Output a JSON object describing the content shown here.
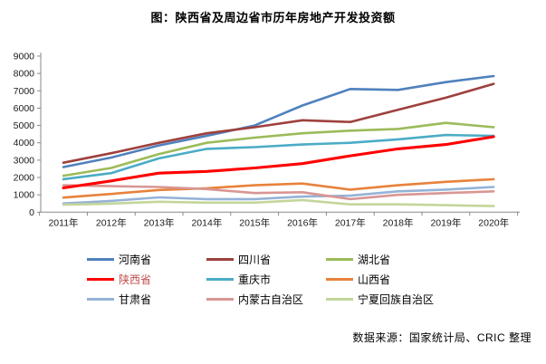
{
  "title": "图：陕西省及周边省市历年房地产开发投资额",
  "source": "数据来源：国家统计局、CRIC 整理",
  "axis": {
    "unit_px_note": "y axis 0-9000, ticks every 1000",
    "tick_color": "#898989",
    "label_color": "#1a1a1a"
  },
  "chart_data": {
    "type": "line",
    "title": "图：陕西省及周边省市历年房地产开发投资额",
    "x": [
      "2011年",
      "2012年",
      "2013年",
      "2014年",
      "2015年",
      "2016年",
      "2017年",
      "2018年",
      "2019年",
      "2020年"
    ],
    "ylim": [
      0,
      9000
    ],
    "ytick_step": 1000,
    "grid": false,
    "legend_position": "bottom",
    "highlight_series": "陕西省",
    "highlight_label_color": "#C0504D",
    "series": [
      {
        "name": "河南省",
        "color": "#4F81BD",
        "values": [
          2600,
          3150,
          3850,
          4400,
          5000,
          6150,
          7100,
          7050,
          7500,
          7850
        ]
      },
      {
        "name": "四川省",
        "color": "#9E413E",
        "values": [
          2850,
          3400,
          4000,
          4550,
          4900,
          5300,
          5200,
          5900,
          6600,
          7400
        ]
      },
      {
        "name": "湖北省",
        "color": "#9BBB59",
        "values": [
          2100,
          2550,
          3350,
          4000,
          4300,
          4550,
          4700,
          4800,
          5150,
          4900
        ]
      },
      {
        "name": "陕西省",
        "color": "#FF0000",
        "values": [
          1400,
          1800,
          2250,
          2350,
          2550,
          2800,
          3250,
          3650,
          3900,
          4350
        ]
      },
      {
        "name": "重庆市",
        "color": "#4BACC6",
        "values": [
          1900,
          2250,
          3100,
          3650,
          3750,
          3900,
          4000,
          4200,
          4450,
          4400
        ]
      },
      {
        "name": "山西省",
        "color": "#E8823C",
        "values": [
          840,
          1050,
          1280,
          1380,
          1550,
          1650,
          1300,
          1550,
          1750,
          1900
        ]
      },
      {
        "name": "甘肃省",
        "color": "#95B3D7",
        "values": [
          500,
          650,
          850,
          750,
          750,
          900,
          950,
          1200,
          1300,
          1450
        ]
      },
      {
        "name": "内蒙古自治区",
        "color": "#D99694",
        "values": [
          1550,
          1500,
          1450,
          1330,
          1100,
          1150,
          750,
          1000,
          1100,
          1200
        ]
      },
      {
        "name": "宁夏回族自治区",
        "color": "#C3D69B",
        "values": [
          430,
          490,
          600,
          550,
          550,
          700,
          450,
          450,
          400,
          350
        ]
      }
    ]
  }
}
